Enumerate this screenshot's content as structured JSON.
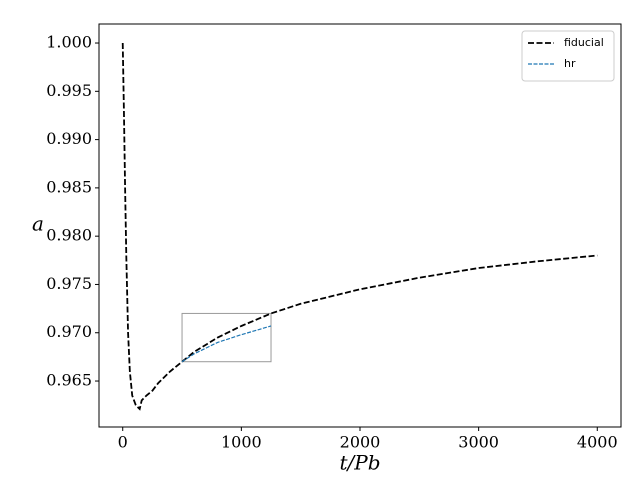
{
  "chart_data": {
    "type": "line",
    "xlabel": "t/Pb",
    "ylabel": "a",
    "xlim": [
      -200,
      4200
    ],
    "ylim": [
      0.96024,
      1.00197
    ],
    "xticks": [
      0,
      1000,
      2000,
      3000,
      4000
    ],
    "yticks": [
      {
        "value": 0.965,
        "label": "0.965"
      },
      {
        "value": 0.97,
        "label": "0.970"
      },
      0.975,
      {
        "value": 0.98,
        "label": "0.980"
      },
      0.985,
      {
        "value": 0.99,
        "label": "0.990"
      },
      0.995,
      {
        "value": 1,
        "label": "1.000"
      }
    ],
    "legend": "upper right",
    "zoom_box": {
      "x": [
        500,
        1250
      ],
      "y": [
        0.967,
        0.972
      ],
      "color": "#999999"
    },
    "series": [
      {
        "name": "fiducial",
        "color": "#000000",
        "x": [
          0,
          10,
          20,
          30,
          45,
          60,
          80,
          110,
          143,
          160,
          200,
          250,
          300,
          400,
          500,
          600,
          800,
          1000,
          1250,
          1500,
          2000,
          2500,
          3000,
          3500,
          4000
        ],
        "values": [
          1.0,
          0.993,
          0.985,
          0.978,
          0.97,
          0.966,
          0.9635,
          0.9625,
          0.9621,
          0.963,
          0.9635,
          0.964,
          0.9648,
          0.966,
          0.967,
          0.968,
          0.9695,
          0.9707,
          0.972,
          0.973,
          0.9745,
          0.9757,
          0.9767,
          0.9774,
          0.978
        ]
      },
      {
        "name": "hr",
        "color": "#1f77b4",
        "x": [
          500,
          600,
          800,
          1000,
          1250
        ],
        "values": [
          0.967,
          0.9678,
          0.969,
          0.9698,
          0.9707
        ]
      }
    ]
  }
}
